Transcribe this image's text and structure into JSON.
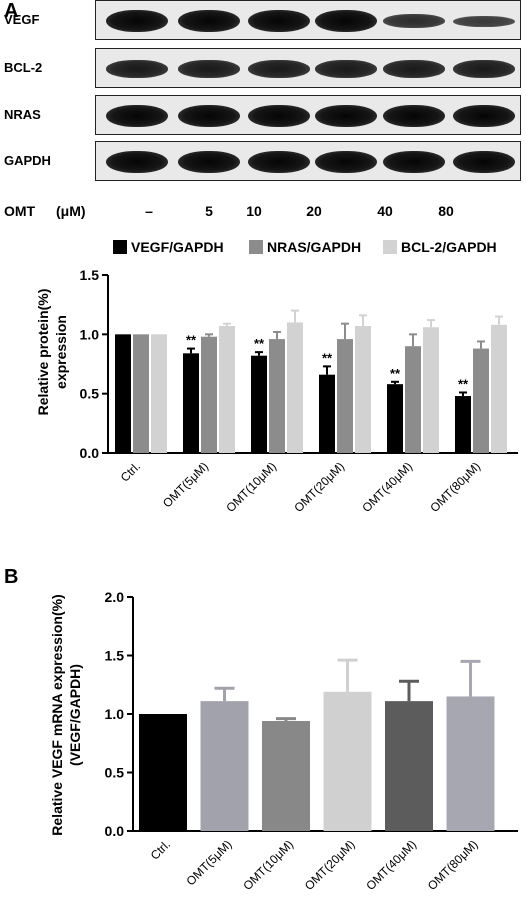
{
  "panel_a": {
    "letter": "A",
    "blot": {
      "rows": [
        {
          "label": "VEGF",
          "intensity": [
            1.0,
            1.0,
            1.0,
            1.0,
            0.62,
            0.5
          ]
        },
        {
          "label": "BCL-2",
          "intensity": [
            0.8,
            0.8,
            0.8,
            0.8,
            0.8,
            0.8
          ]
        },
        {
          "label": "NRAS",
          "intensity": [
            1.0,
            1.0,
            1.0,
            1.0,
            1.0,
            1.0
          ]
        },
        {
          "label": "GAPDH",
          "intensity": [
            1.0,
            1.0,
            1.0,
            1.0,
            1.0,
            1.0
          ]
        }
      ],
      "treatment_label": "OMT",
      "unit_label": "(μM)",
      "doses": [
        "–",
        "5",
        "10",
        "20",
        "40",
        "80"
      ]
    }
  },
  "chart_data": [
    {
      "type": "bar",
      "categories": [
        "Ctrl.",
        "OMT(5μM)",
        "OMT(10μM)",
        "OMT(20μM)",
        "OMT(40μM)",
        "OMT(80μM)"
      ],
      "series": [
        {
          "name": "VEGF/GAPDH",
          "color": "#000000",
          "values": [
            1.0,
            0.84,
            0.82,
            0.66,
            0.58,
            0.48
          ],
          "errors": [
            0,
            0.04,
            0.03,
            0.07,
            0.02,
            0.03
          ]
        },
        {
          "name": "NRAS/GAPDH",
          "color": "#8c8c8c",
          "values": [
            1.0,
            0.98,
            0.96,
            0.96,
            0.9,
            0.88
          ],
          "errors": [
            0,
            0.02,
            0.06,
            0.13,
            0.1,
            0.06
          ]
        },
        {
          "name": "BCL-2/GAPDH",
          "color": "#d2d2d2",
          "values": [
            1.0,
            1.07,
            1.1,
            1.07,
            1.06,
            1.08
          ],
          "errors": [
            0,
            0.02,
            0.1,
            0.09,
            0.06,
            0.07
          ]
        }
      ],
      "significance": [
        "",
        "**",
        "**",
        "**",
        "**",
        "**"
      ],
      "ylabel_lines": [
        "Relative protein(%)",
        "expression"
      ],
      "xlabel": "",
      "ylim": [
        0,
        1.5
      ],
      "yticks": [
        "0.0",
        "0.5",
        "1.0",
        "1.5"
      ],
      "ytick_values": [
        0,
        0.5,
        1.0,
        1.5
      ],
      "grid": false,
      "legend_position": "top"
    },
    {
      "type": "bar",
      "panel_letter": "B",
      "categories": [
        "Ctrl.",
        "OMT(5μM)",
        "OMT(10μM)",
        "OMT(20μM)",
        "OMT(40μM)",
        "OMT(80μM)"
      ],
      "values": [
        1.0,
        1.11,
        0.94,
        1.19,
        1.11,
        1.15
      ],
      "errors": [
        0,
        0.11,
        0.02,
        0.27,
        0.17,
        0.3
      ],
      "colors": [
        "#000000",
        "#a2a2ac",
        "#888888",
        "#d0d0d0",
        "#5c5c5c",
        "#a7a7b1"
      ],
      "ylabel_lines": [
        "Relative VEGF mRNA expression(%)",
        "(VEGF/GAPDH)"
      ],
      "xlabel": "",
      "ylim": [
        0,
        2.0
      ],
      "yticks": [
        "0.0",
        "0.5",
        "1.0",
        "1.5",
        "2.0"
      ],
      "ytick_values": [
        0,
        0.5,
        1.0,
        1.5,
        2.0
      ],
      "grid": false
    }
  ]
}
